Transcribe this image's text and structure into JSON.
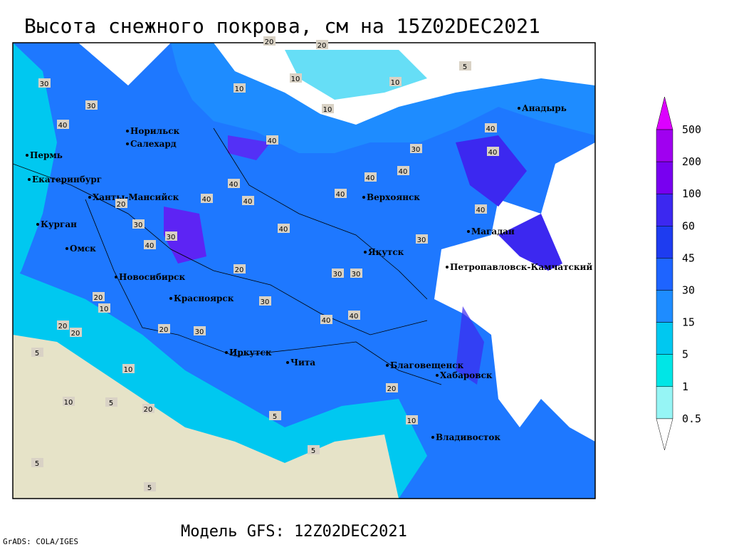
{
  "title": "Высота снежного покрова, см на 15Z02DEC2021",
  "model": "Модель GFS: 12Z02DEC2021",
  "credit": "GrADS: COLA/IGES",
  "legend": {
    "levels": [
      500,
      200,
      100,
      60,
      45,
      30,
      15,
      5,
      1,
      0.5
    ],
    "colors": [
      "#dc00ff",
      "#a000f0",
      "#7800f0",
      "#3c28f0",
      "#1e3cf0",
      "#1e64ff",
      "#1e8cff",
      "#00c8f0",
      "#00e6e6",
      "#96f5f5",
      "#ffffff"
    ]
  },
  "cities": [
    "Анадырь",
    "Норильск",
    "Салехард",
    "Пермь",
    "Екатеринбург",
    "Ханты-Мансийск",
    "Верхоянск",
    "Курган",
    "Магадан",
    "Омск",
    "Якутск",
    "Петропавловск-Камчатский",
    "Новосибирск",
    "Красноярск",
    "Иркутск",
    "Чита",
    "Благовещенск",
    "Хабаровск",
    "Владивосток"
  ],
  "contour_labels": [
    20,
    20,
    5,
    10,
    10,
    10,
    30,
    30,
    10,
    40,
    40,
    40,
    30,
    40,
    40,
    40,
    40,
    20,
    30,
    40,
    40,
    40,
    40,
    40,
    30,
    40,
    30,
    30,
    30,
    20,
    20,
    20,
    30,
    30,
    40,
    40,
    10,
    20,
    20,
    10,
    5,
    5,
    10,
    20,
    10,
    5,
    5,
    20,
    5,
    5
  ]
}
